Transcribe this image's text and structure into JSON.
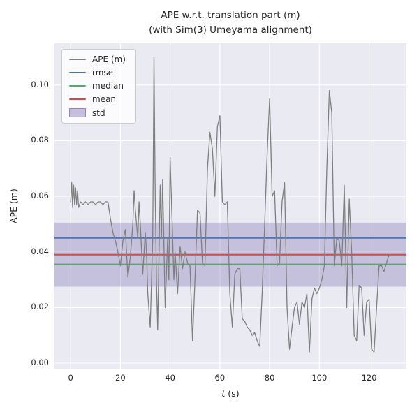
{
  "chart": {
    "title_line1": "APE w.r.t. translation part (m)",
    "title_line2": "(with Sim(3) Umeyama alignment)",
    "ylabel": "APE (m)",
    "xlabel_var": "t",
    "xlabel_unit": " (s)"
  },
  "legend": {
    "items": [
      {
        "label": "APE (m)",
        "type": "line",
        "color": "#7f7f7f"
      },
      {
        "label": "rmse",
        "type": "line",
        "color": "#4c72b0"
      },
      {
        "label": "median",
        "type": "line",
        "color": "#55a868"
      },
      {
        "label": "mean",
        "type": "line",
        "color": "#c44e52"
      },
      {
        "label": "std",
        "type": "patch",
        "color": "#8172b2"
      }
    ]
  },
  "colors": {
    "axes_background": "#eaeaf2",
    "grid": "#ffffff",
    "text": "#262626",
    "ape_line": "#7f7f7f",
    "rmse_line": "#4c72b0",
    "median_line": "#55a868",
    "mean_line": "#c44e52",
    "std_fill": "#8172b2"
  },
  "chart_data": {
    "type": "line",
    "title": "APE w.r.t. translation part (m) (with Sim(3) Umeyama alignment)",
    "xlabel": "t (s)",
    "ylabel": "APE (m)",
    "xlim": [
      -6.5,
      135
    ],
    "ylim": [
      -0.002,
      0.115
    ],
    "grid": true,
    "legend_position": "upper left",
    "xticks": {
      "values": [
        0,
        20,
        40,
        60,
        80,
        100,
        120
      ],
      "labels": [
        "0",
        "20",
        "40",
        "60",
        "80",
        "100",
        "120"
      ]
    },
    "yticks": {
      "values": [
        0.0,
        0.02,
        0.04,
        0.06,
        0.08,
        0.1
      ],
      "labels": [
        "0.00",
        "0.02",
        "0.04",
        "0.06",
        "0.08",
        "0.10"
      ]
    },
    "stats": {
      "rmse": 0.045,
      "mean": 0.039,
      "median": 0.0355,
      "std": 0.0115
    },
    "hlines": [
      {
        "name": "rmse",
        "value": 0.045,
        "color": "#4c72b0"
      },
      {
        "name": "median",
        "value": 0.0355,
        "color": "#55a868"
      },
      {
        "name": "mean",
        "value": 0.039,
        "color": "#c44e52"
      }
    ],
    "band": {
      "name": "std",
      "low": 0.0275,
      "high": 0.0505,
      "color": "#8172b2",
      "opacity": 0.35
    },
    "series": [
      {
        "name": "APE (m)",
        "color": "#7f7f7f",
        "points": [
          [
            0,
            0.058
          ],
          [
            0.4,
            0.065
          ],
          [
            0.8,
            0.056
          ],
          [
            1.2,
            0.064
          ],
          [
            1.6,
            0.057
          ],
          [
            2,
            0.063
          ],
          [
            2.4,
            0.057
          ],
          [
            2.8,
            0.062
          ],
          [
            3.2,
            0.056
          ],
          [
            4,
            0.058
          ],
          [
            5,
            0.057
          ],
          [
            6,
            0.058
          ],
          [
            7,
            0.057
          ],
          [
            8,
            0.058
          ],
          [
            9,
            0.058
          ],
          [
            10,
            0.057
          ],
          [
            11,
            0.058
          ],
          [
            12,
            0.058
          ],
          [
            13,
            0.057
          ],
          [
            14,
            0.058
          ],
          [
            15,
            0.058
          ],
          [
            16,
            0.052
          ],
          [
            17,
            0.047
          ],
          [
            18,
            0.044
          ],
          [
            19,
            0.04
          ],
          [
            20,
            0.035
          ],
          [
            21,
            0.044
          ],
          [
            22,
            0.048
          ],
          [
            23,
            0.031
          ],
          [
            24,
            0.038
          ],
          [
            25,
            0.05
          ],
          [
            25.5,
            0.062
          ],
          [
            26,
            0.055
          ],
          [
            27,
            0.045
          ],
          [
            27.5,
            0.058
          ],
          [
            28,
            0.05
          ],
          [
            29,
            0.032
          ],
          [
            30,
            0.047
          ],
          [
            30.5,
            0.04
          ],
          [
            31,
            0.025
          ],
          [
            32,
            0.013
          ],
          [
            33,
            0.045
          ],
          [
            33.5,
            0.11
          ],
          [
            34,
            0.06
          ],
          [
            34.5,
            0.03
          ],
          [
            35,
            0.012
          ],
          [
            36,
            0.064
          ],
          [
            36.5,
            0.045
          ],
          [
            37,
            0.066
          ],
          [
            38,
            0.02
          ],
          [
            39,
            0.045
          ],
          [
            39.5,
            0.03
          ],
          [
            40,
            0.074
          ],
          [
            41,
            0.045
          ],
          [
            41.5,
            0.03
          ],
          [
            42,
            0.04
          ],
          [
            43,
            0.025
          ],
          [
            44,
            0.042
          ],
          [
            45,
            0.034
          ],
          [
            46,
            0.04
          ],
          [
            47,
            0.036
          ],
          [
            48,
            0.035
          ],
          [
            49,
            0.008
          ],
          [
            50,
            0.03
          ],
          [
            51,
            0.055
          ],
          [
            52,
            0.054
          ],
          [
            53,
            0.036
          ],
          [
            54,
            0.035
          ],
          [
            55,
            0.07
          ],
          [
            56,
            0.083
          ],
          [
            57,
            0.077
          ],
          [
            58,
            0.06
          ],
          [
            59,
            0.085
          ],
          [
            60,
            0.089
          ],
          [
            61,
            0.058
          ],
          [
            62,
            0.057
          ],
          [
            63,
            0.058
          ],
          [
            64,
            0.025
          ],
          [
            65,
            0.013
          ],
          [
            66,
            0.032
          ],
          [
            67,
            0.034
          ],
          [
            68,
            0.034
          ],
          [
            69,
            0.016
          ],
          [
            70,
            0.015
          ],
          [
            71,
            0.013
          ],
          [
            72,
            0.012
          ],
          [
            73,
            0.01
          ],
          [
            74,
            0.011
          ],
          [
            75,
            0.008
          ],
          [
            76,
            0.006
          ],
          [
            77,
            0.025
          ],
          [
            78,
            0.05
          ],
          [
            79,
            0.075
          ],
          [
            80,
            0.095
          ],
          [
            81,
            0.06
          ],
          [
            82,
            0.062
          ],
          [
            83,
            0.035
          ],
          [
            84,
            0.036
          ],
          [
            85,
            0.058
          ],
          [
            86,
            0.065
          ],
          [
            87,
            0.02
          ],
          [
            88,
            0.005
          ],
          [
            89,
            0.013
          ],
          [
            90,
            0.02
          ],
          [
            91,
            0.022
          ],
          [
            92,
            0.014
          ],
          [
            93,
            0.022
          ],
          [
            94,
            0.02
          ],
          [
            95,
            0.025
          ],
          [
            96,
            0.004
          ],
          [
            97,
            0.023
          ],
          [
            98,
            0.027
          ],
          [
            99,
            0.025
          ],
          [
            100,
            0.027
          ],
          [
            101,
            0.03
          ],
          [
            102,
            0.035
          ],
          [
            103,
            0.07
          ],
          [
            104,
            0.098
          ],
          [
            105,
            0.09
          ],
          [
            106,
            0.035
          ],
          [
            107,
            0.045
          ],
          [
            108,
            0.044
          ],
          [
            109,
            0.035
          ],
          [
            110,
            0.064
          ],
          [
            111,
            0.02
          ],
          [
            112,
            0.059
          ],
          [
            113,
            0.04
          ],
          [
            114,
            0.01
          ],
          [
            115,
            0.008
          ],
          [
            116,
            0.028
          ],
          [
            117,
            0.027
          ],
          [
            118,
            0.01
          ],
          [
            119,
            0.022
          ],
          [
            120,
            0.023
          ],
          [
            121,
            0.005
          ],
          [
            122,
            0.004
          ],
          [
            123,
            0.02
          ],
          [
            124,
            0.035
          ],
          [
            125,
            0.035
          ],
          [
            126,
            0.033
          ],
          [
            127,
            0.036
          ],
          [
            128,
            0.039
          ]
        ]
      }
    ]
  }
}
